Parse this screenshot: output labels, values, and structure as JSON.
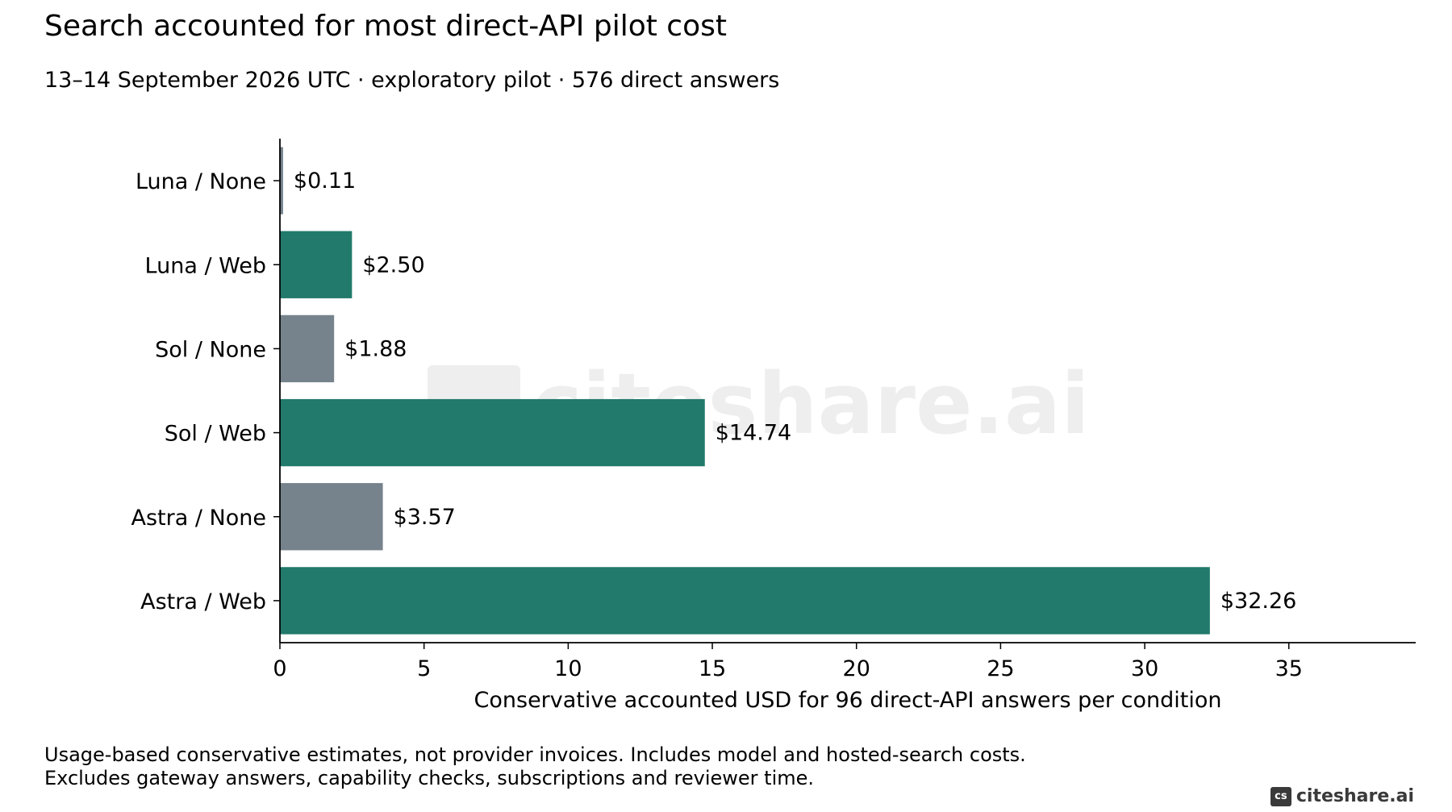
{
  "title": "Search accounted for most direct-API pilot cost",
  "subtitle": "13–14 September 2026 UTC · exploratory pilot · 576 direct answers",
  "footnote": {
    "line1": "Usage-based conservative estimates, not provider invoices. Includes model and hosted-search costs.",
    "line2": "Excludes gateway answers, capability checks, subscriptions and reviewer time."
  },
  "brand": {
    "badge": "cs",
    "text": "citeshare.ai"
  },
  "watermark": "citeshare.ai",
  "colors": {
    "web": "#217a6b",
    "none": "#76838d",
    "axis": "#000000",
    "watermark": "#eeeeee"
  },
  "chart_data": {
    "type": "bar",
    "orientation": "horizontal",
    "categories": [
      "Luna / None",
      "Luna / Web",
      "Sol / None",
      "Sol / Web",
      "Astra / None",
      "Astra / Web"
    ],
    "values": [
      0.11,
      2.5,
      1.88,
      14.74,
      3.57,
      32.26
    ],
    "value_labels": [
      "$0.11",
      "$2.50",
      "$1.88",
      "$14.74",
      "$3.57",
      "$32.26"
    ],
    "groups": [
      "none",
      "web",
      "none",
      "web",
      "none",
      "web"
    ],
    "xlabel": "Conservative accounted USD for 96 direct-API answers per condition",
    "ylabel": "",
    "xlim": [
      0,
      39.4
    ],
    "xticks": [
      0,
      5,
      10,
      15,
      20,
      25,
      30,
      35
    ],
    "grid": false,
    "legend": "none"
  }
}
